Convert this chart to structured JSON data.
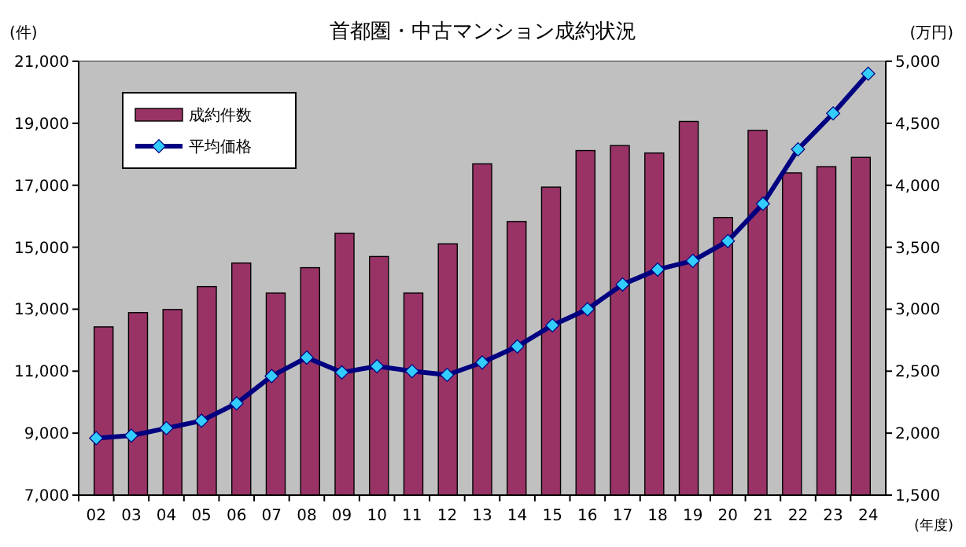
{
  "chart_data": {
    "type": "bar",
    "title": "首都圏・中古マンション成約状況",
    "ylabel": "(件)",
    "y2label": "(万円)",
    "xlabel": "(年度)",
    "categories": [
      "02",
      "03",
      "04",
      "05",
      "06",
      "07",
      "08",
      "09",
      "10",
      "11",
      "12",
      "13",
      "14",
      "15",
      "16",
      "17",
      "18",
      "19",
      "20",
      "21",
      "22",
      "23",
      "24"
    ],
    "series": [
      {
        "name": "成約件数",
        "color": "#993366",
        "values": [
          12430,
          12890,
          12990,
          13730,
          14490,
          13520,
          14340,
          15450,
          14700,
          13520,
          15110,
          17690,
          15830,
          16940,
          18120,
          18280,
          18040,
          19060,
          15960,
          18770,
          17400,
          17600,
          17900
        ]
      },
      {
        "name": "平均価格",
        "type": "line",
        "axis": "y2",
        "color": "#000080",
        "marker": "diamond",
        "values": [
          1960,
          1980,
          2040,
          2100,
          2240,
          2460,
          2610,
          2490,
          2540,
          2500,
          2470,
          2570,
          2700,
          2870,
          3000,
          3200,
          3320,
          3390,
          3550,
          3850,
          4290,
          4580,
          4900
        ]
      }
    ],
    "ylim": [
      7000,
      21000
    ],
    "yticks": [
      {
        "value": 7000,
        "label": "7,000"
      },
      {
        "value": 9000,
        "label": "9,000"
      },
      {
        "value": 11000,
        "label": "11,000"
      },
      {
        "value": 13000,
        "label": "13,000"
      },
      {
        "value": 15000,
        "label": "15,000"
      },
      {
        "value": 17000,
        "label": "17,000"
      },
      {
        "value": 19000,
        "label": "19,000"
      },
      {
        "value": 21000,
        "label": "21,000"
      }
    ],
    "y2lim": [
      1500,
      5000
    ],
    "y2ticks": [
      {
        "value": 1500,
        "label": "1,500"
      },
      {
        "value": 2000,
        "label": "2,000"
      },
      {
        "value": 2500,
        "label": "2,500"
      },
      {
        "value": 3000,
        "label": "3,000"
      },
      {
        "value": 3500,
        "label": "3,500"
      },
      {
        "value": 4000,
        "label": "4,000"
      },
      {
        "value": 4500,
        "label": "4,500"
      },
      {
        "value": 5000,
        "label": "5,000"
      }
    ],
    "legend": "top left",
    "grid": false
  }
}
